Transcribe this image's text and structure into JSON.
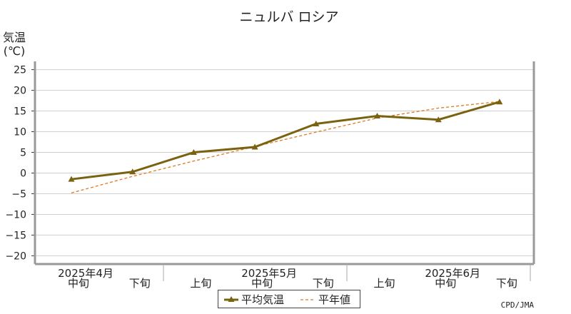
{
  "chart_data": {
    "type": "line",
    "title": "ニュルバ ロシア",
    "ylabel_line1": "気温",
    "ylabel_line2": "(℃)",
    "ylim": [
      -22,
      27
    ],
    "yticks": [
      25,
      20,
      15,
      10,
      5,
      0,
      -5,
      -10,
      -15,
      -20
    ],
    "grid": true,
    "categories": [
      "中旬",
      "下旬",
      "上旬",
      "中旬",
      "下旬",
      "上旬",
      "中旬",
      "下旬"
    ],
    "month_labels": [
      {
        "text": "2025年4月",
        "index": 0
      },
      {
        "text": "2025年5月",
        "index": 3
      },
      {
        "text": "2025年6月",
        "index": 6
      }
    ],
    "series": [
      {
        "name": "平均気温",
        "values": [
          -1.5,
          0.3,
          5.0,
          6.3,
          11.9,
          13.8,
          12.9,
          17.2
        ],
        "color": "#7a6210",
        "style": "solid"
      },
      {
        "name": "平年値",
        "values": [
          -4.8,
          -0.8,
          2.9,
          6.4,
          9.9,
          13.3,
          15.7,
          17.3
        ],
        "color": "#e07820",
        "style": "dashed"
      }
    ],
    "legend_position": "bottom-center",
    "credit": "CPD/JMA"
  }
}
